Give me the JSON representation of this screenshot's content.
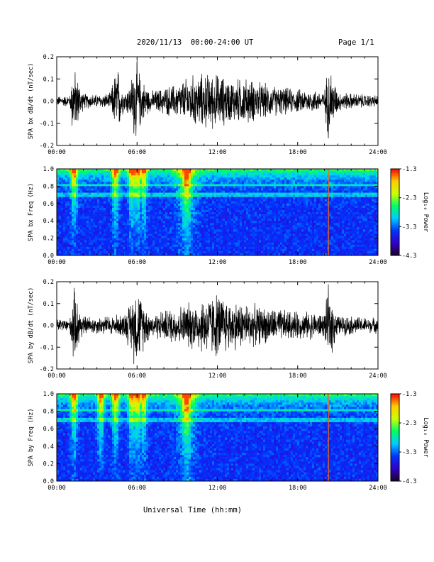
{
  "header": {
    "title": "2020/11/13  00:00-24:00 UT",
    "page": "Page 1/1"
  },
  "xlabel": "Universal Time (hh:mm)",
  "colorbar": {
    "label": "Log₁₀ Power",
    "ticks": [
      "-1.3",
      "-2.3",
      "-3.3",
      "-4.3"
    ],
    "range": [
      -4.3,
      -1.3
    ],
    "colormap": [
      "#1a0026",
      "#3300cc",
      "#0033ff",
      "#00ccff",
      "#00ff66",
      "#ccff00",
      "#ffcc00",
      "#ff0000"
    ]
  },
  "chart_data": [
    {
      "type": "line",
      "ylabel": "SPA bx dB/dt (nT/sec)",
      "xlim": [
        0,
        24
      ],
      "ylim": [
        -0.2,
        0.2
      ],
      "x_ticks": [
        "00:00",
        "06:00",
        "12:00",
        "18:00",
        "24:00"
      ],
      "y_ticks": [
        "0.2",
        "0.1",
        "0.0",
        "-0.1",
        "-0.2"
      ],
      "series": [
        {
          "hour": [
            0,
            1,
            1.2,
            2,
            3,
            4,
            4.5,
            5,
            5.5,
            5.8,
            6,
            6.3,
            7,
            8,
            9,
            10,
            11,
            12,
            13,
            14,
            15,
            16,
            17,
            18,
            19,
            20,
            20.3,
            21,
            22,
            23,
            24
          ],
          "amplitude": [
            0.025,
            0.03,
            0.19,
            0.04,
            0.035,
            0.04,
            0.19,
            0.05,
            0.09,
            0.2,
            0.2,
            0.12,
            0.05,
            0.07,
            0.09,
            0.13,
            0.14,
            0.14,
            0.11,
            0.12,
            0.1,
            0.08,
            0.07,
            0.06,
            0.06,
            0.05,
            0.2,
            0.05,
            0.04,
            0.035,
            0.03
          ]
        }
      ]
    },
    {
      "type": "heatmap",
      "ylabel": "SPA bx Freq (Hz)",
      "xlim": [
        0,
        24
      ],
      "ylim": [
        0,
        1.0
      ],
      "x_ticks": [
        "00:00",
        "06:00",
        "12:00",
        "18:00",
        "24:00"
      ],
      "y_ticks": [
        "1.0",
        "0.8",
        "0.6",
        "0.4",
        "0.2",
        "0.0"
      ],
      "zlim": [
        -4.3,
        -1.3
      ],
      "bursts_hour": [
        1.3,
        4.4,
        5.6,
        5.9,
        6.1,
        6.5,
        9.7
      ],
      "lines_hour": [
        20.3
      ]
    },
    {
      "type": "line",
      "ylabel": "SPA by dB/dt (nT/sec)",
      "xlim": [
        0,
        24
      ],
      "ylim": [
        -0.2,
        0.2
      ],
      "x_ticks": [
        "00:00",
        "06:00",
        "12:00",
        "18:00",
        "24:00"
      ],
      "y_ticks": [
        "0.2",
        "0.1",
        "0.0",
        "-0.1",
        "-0.2"
      ],
      "series": [
        {
          "hour": [
            0,
            1,
            1.2,
            2,
            3,
            4,
            5,
            5.5,
            5.8,
            6,
            6.3,
            7,
            8,
            9,
            10,
            11,
            12,
            13,
            14,
            15,
            16,
            17,
            18,
            19,
            20,
            20.3,
            21,
            22,
            23,
            24
          ],
          "amplitude": [
            0.03,
            0.04,
            0.2,
            0.05,
            0.045,
            0.05,
            0.06,
            0.12,
            0.2,
            0.2,
            0.15,
            0.06,
            0.08,
            0.1,
            0.12,
            0.15,
            0.17,
            0.13,
            0.12,
            0.1,
            0.09,
            0.08,
            0.07,
            0.07,
            0.06,
            0.2,
            0.05,
            0.05,
            0.04,
            0.04
          ]
        }
      ]
    },
    {
      "type": "heatmap",
      "ylabel": "SPA by Freq (Hz)",
      "xlim": [
        0,
        24
      ],
      "ylim": [
        0,
        1.0
      ],
      "x_ticks": [
        "00:00",
        "06:00",
        "12:00",
        "18:00",
        "24:00"
      ],
      "y_ticks": [
        "1.0",
        "0.8",
        "0.6",
        "0.4",
        "0.2",
        "0.0"
      ],
      "zlim": [
        -4.3,
        -1.3
      ],
      "bursts_hour": [
        1.3,
        3.3,
        4.4,
        5.6,
        5.9,
        6.1,
        6.5,
        9.7
      ],
      "lines_hour": [
        20.3
      ]
    }
  ]
}
